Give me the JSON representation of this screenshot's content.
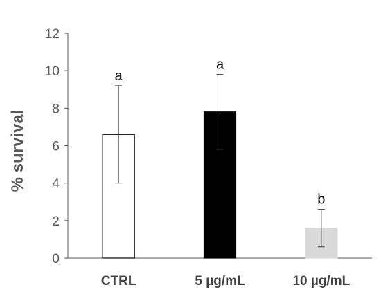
{
  "chart_data": {
    "type": "bar",
    "ylabel": "% survival",
    "ylim": [
      0,
      12
    ],
    "yticks": [
      "0",
      "2",
      "4",
      "6",
      "8",
      "10",
      "12"
    ],
    "categories": [
      "CTRL",
      "5 µg/mL",
      "10 µg/mL"
    ],
    "values": [
      6.6,
      7.8,
      1.6
    ],
    "error_low": [
      4.0,
      5.8,
      0.6
    ],
    "error_high": [
      9.2,
      9.8,
      2.6
    ],
    "significance": [
      "a",
      "a",
      "b"
    ],
    "bar_fill": [
      "#ffffff",
      "#000000",
      "#d9d9d9"
    ],
    "bar_stroke": [
      "#000000",
      "#000000",
      "#d9d9d9"
    ],
    "grid": false,
    "legend": "none"
  }
}
